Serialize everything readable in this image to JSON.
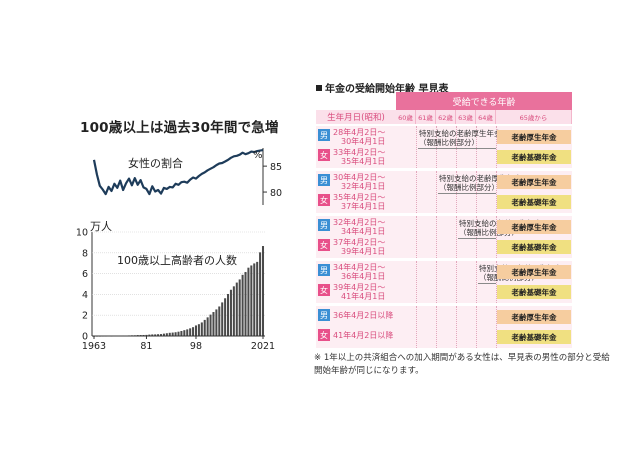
{
  "chart_data": [
    {
      "type": "line",
      "title": "100歳以上は過去30年間で急増",
      "series": [
        {
          "name": "女性の割合"
        }
      ],
      "y_ticks": [
        "85",
        "80"
      ],
      "y_unit": "%",
      "ylim": [
        77.5,
        88.5
      ],
      "x": [
        1963,
        1964,
        1965,
        1966,
        1967,
        1968,
        1969,
        1970,
        1971,
        1972,
        1973,
        1974,
        1975,
        1976,
        1977,
        1978,
        1979,
        1980,
        1981,
        1982,
        1983,
        1984,
        1985,
        1986,
        1987,
        1988,
        1989,
        1990,
        1991,
        1992,
        1993,
        1994,
        1995,
        1996,
        1997,
        1998,
        1999,
        2000,
        2001,
        2002,
        2003,
        2004,
        2005,
        2006,
        2007,
        2008,
        2009,
        2010,
        2011,
        2012,
        2013,
        2014,
        2015,
        2016,
        2017,
        2018,
        2019,
        2020,
        2021
      ],
      "values": [
        86.2,
        83.4,
        81.2,
        80.5,
        79.6,
        81.0,
        80.2,
        81.6,
        80.8,
        82.2,
        80.4,
        81.7,
        82.6,
        81.3,
        82.7,
        81.4,
        82.3,
        80.9,
        80.6,
        79.6,
        81.1,
        80.1,
        80.4,
        79.7,
        80.8,
        80.6,
        81.0,
        80.9,
        81.6,
        81.4,
        81.9,
        82.0,
        81.8,
        82.4,
        82.8,
        82.6,
        83.1,
        83.5,
        83.8,
        84.2,
        84.5,
        84.8,
        85.2,
        85.5,
        85.6,
        85.9,
        86.2,
        86.6,
        86.9,
        87.0,
        87.2,
        87.6,
        87.3,
        87.5,
        87.8,
        87.7,
        87.9,
        88.0,
        88.1
      ]
    },
    {
      "type": "bar",
      "series": [
        {
          "name": "100歳以上高齢者の人数"
        }
      ],
      "y_unit": "万人",
      "ylim": [
        0,
        10
      ],
      "y_ticks": [
        "0",
        "2",
        "4",
        "6",
        "8",
        "10"
      ],
      "x_ticks": [
        "1963",
        "81",
        "98",
        "2021"
      ],
      "x": [
        1963,
        1964,
        1965,
        1966,
        1967,
        1968,
        1969,
        1970,
        1971,
        1972,
        1973,
        1974,
        1975,
        1976,
        1977,
        1978,
        1979,
        1980,
        1981,
        1982,
        1983,
        1984,
        1985,
        1986,
        1987,
        1988,
        1989,
        1990,
        1991,
        1992,
        1993,
        1994,
        1995,
        1996,
        1997,
        1998,
        1999,
        2000,
        2001,
        2002,
        2003,
        2004,
        2005,
        2006,
        2007,
        2008,
        2009,
        2010,
        2011,
        2012,
        2013,
        2014,
        2015,
        2016,
        2017,
        2018,
        2019,
        2020,
        2021
      ],
      "values": [
        0.0153,
        0.0191,
        0.0198,
        0.0252,
        0.0255,
        0.0327,
        0.0252,
        0.031,
        0.0339,
        0.0405,
        0.0495,
        0.0427,
        0.0548,
        0.0666,
        0.0702,
        0.0893,
        0.0937,
        0.0968,
        0.1072,
        0.1354,
        0.1524,
        0.1567,
        0.174,
        0.1851,
        0.2271,
        0.2668,
        0.3078,
        0.3298,
        0.3625,
        0.4152,
        0.4802,
        0.5593,
        0.6378,
        0.7373,
        0.8491,
        1.0158,
        1.1346,
        1.3036,
        1.5475,
        1.7934,
        2.0561,
        2.3038,
        2.5554,
        2.8395,
        3.2295,
        3.6276,
        4.0399,
        4.4449,
        4.7756,
        5.1376,
        5.4397,
        5.882,
        6.1568,
        6.5692,
        6.7824,
        6.9785,
        7.1274,
        8.045,
        8.651
      ]
    }
  ],
  "table": {
    "title": "年金の受給開始年齢 早見表",
    "header_band": "受給できる年齢",
    "birth_header": "生年月日(昭和)",
    "age_columns": [
      "60歳",
      "61歳",
      "62歳",
      "63歳",
      "64歳",
      "65歳から"
    ],
    "male_symbol": "男",
    "female_symbol": "女",
    "rows": [
      {
        "male_dates": [
          "28年4月2日～",
          "30年4月1日"
        ],
        "female_dates": [
          "33年4月2日～",
          "35年4月1日"
        ],
        "special_label": [
          "特別支給の老齢厚生年金",
          "（報酬比例部分）"
        ],
        "pension_old": "老齢厚生年金",
        "pension_basic": "老齢基礎年金",
        "special_start_age": 61
      },
      {
        "male_dates": [
          "30年4月2日～",
          "32年4月1日"
        ],
        "female_dates": [
          "35年4月2日～",
          "37年4月1日"
        ],
        "special_label": [
          "特別支給の老齢厚生年金",
          "（報酬比例部分）"
        ],
        "pension_old": "老齢厚生年金",
        "pension_basic": "老齢基礎年金",
        "special_start_age": 62
      },
      {
        "male_dates": [
          "32年4月2日～",
          "34年4月1日"
        ],
        "female_dates": [
          "37年4月2日～",
          "39年4月1日"
        ],
        "special_label": [
          "特別支給の老齢厚生年金",
          "（報酬比例部分）"
        ],
        "pension_old": "老齢厚生年金",
        "pension_basic": "老齢基礎年金",
        "special_start_age": 63
      },
      {
        "male_dates": [
          "34年4月2日～",
          "36年4月1日"
        ],
        "female_dates": [
          "39年4月2日～",
          "41年4月1日"
        ],
        "special_label": [
          "特別支給の老齢厚生年金",
          "（報酬比例部分）"
        ],
        "pension_old": "老齢厚生年金",
        "pension_basic": "老齢基礎年金",
        "special_start_age": 64
      }
    ],
    "last_row": {
      "male_dates": "36年4月2日以降",
      "female_dates": "41年4月2日以降",
      "pension_old": "老齢厚生年金",
      "pension_basic": "老齢基礎年金"
    },
    "footnote": "※ 1年以上の共済組合への加入期間がある女性は、早見表の男性の部分と受給開始年齢が同じになります。",
    "colors": {
      "pink": "#e9719c",
      "light_pink": "#fbe0ea",
      "male": "#3b8fd4",
      "female": "#e8508a",
      "old_pension": "#f6cd9f",
      "basic_pension": "#f0e081"
    }
  }
}
